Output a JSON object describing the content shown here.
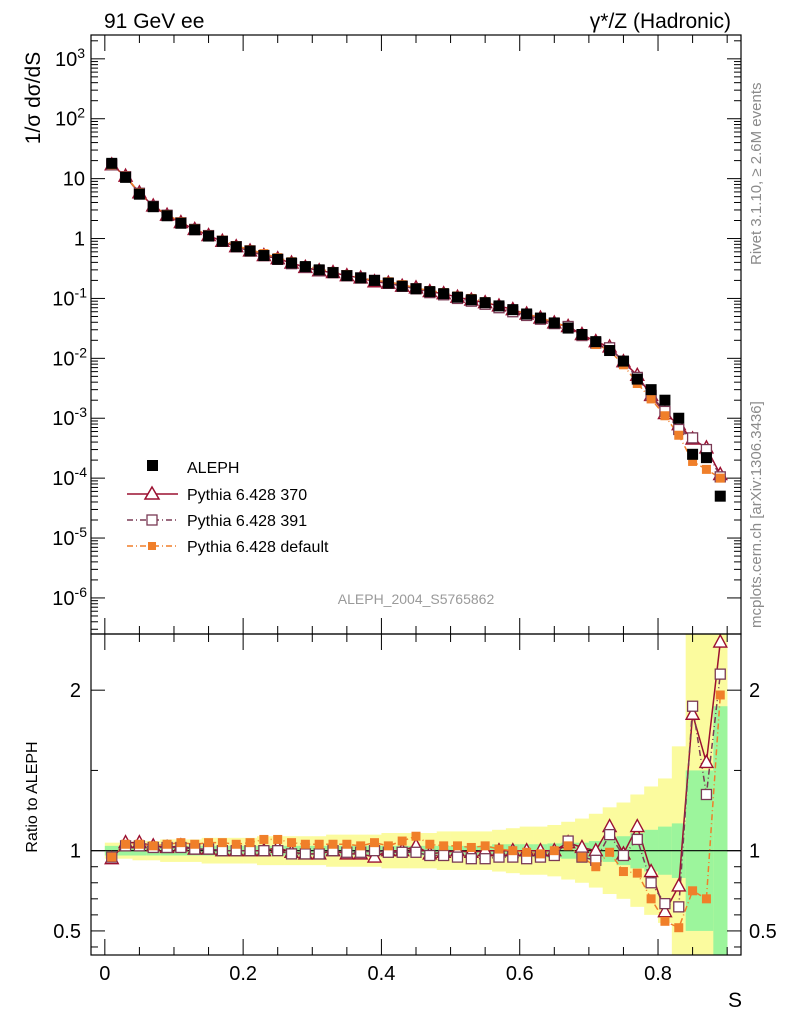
{
  "header": {
    "left": "91 GeV ee",
    "right": "γ*/Z (Hadronic)"
  },
  "side_labels": {
    "rivet": "Rivet 3.1.10, ≥ 2.6M events",
    "site": "mcplots.cern.ch [arXiv:1306.3436]"
  },
  "analysis_label": "ALEPH_2004_S5765862",
  "colors": {
    "data": "#000000",
    "p370": "#9b1030",
    "p391": "#7a3a55",
    "pdef": "#f07f2a",
    "band_inner": "#9cf59c",
    "band_outer": "#fbfb9e"
  },
  "chart_data": [
    {
      "type": "scatter",
      "title": "1/σ dσ/dS",
      "ylabel": "1/σ dσ/dS",
      "xlabel": "S",
      "xlim": [
        -0.02,
        0.92
      ],
      "ylim": [
        2.5e-07,
        2500
      ],
      "yscale": "log",
      "ytick_labels": [
        "10^-6",
        "10^-5",
        "10^-4",
        "10^-3",
        "10^-2",
        "10^-1",
        "1",
        "10",
        "10^2",
        "10^3"
      ],
      "legend": [
        "ALEPH",
        "Pythia 6.428 370",
        "Pythia 6.428 391",
        "Pythia 6.428 default"
      ],
      "x": [
        0.01,
        0.03,
        0.05,
        0.07,
        0.09,
        0.11,
        0.13,
        0.15,
        0.17,
        0.19,
        0.21,
        0.23,
        0.25,
        0.27,
        0.29,
        0.31,
        0.33,
        0.35,
        0.37,
        0.39,
        0.41,
        0.43,
        0.45,
        0.47,
        0.49,
        0.51,
        0.53,
        0.55,
        0.57,
        0.59,
        0.61,
        0.63,
        0.65,
        0.67,
        0.69,
        0.71,
        0.73,
        0.75,
        0.77,
        0.79,
        0.81,
        0.83,
        0.85,
        0.87,
        0.89
      ],
      "series": [
        {
          "name": "ALEPH",
          "values": [
            18,
            10.5,
            5.5,
            3.4,
            2.4,
            1.8,
            1.4,
            1.1,
            0.9,
            0.73,
            0.62,
            0.52,
            0.45,
            0.39,
            0.34,
            0.3,
            0.27,
            0.24,
            0.22,
            0.2,
            0.18,
            0.16,
            0.145,
            0.13,
            0.12,
            0.105,
            0.095,
            0.085,
            0.075,
            0.065,
            0.055,
            0.047,
            0.039,
            0.032,
            0.025,
            0.019,
            0.0135,
            0.009,
            0.0045,
            0.003,
            0.002,
            0.001,
            0.00025,
            0.00022,
            5e-05
          ]
        },
        {
          "name": "Pythia 6.428 370",
          "values": [
            17,
            11,
            5.8,
            3.5,
            2.45,
            1.85,
            1.42,
            1.12,
            0.9,
            0.73,
            0.62,
            0.52,
            0.46,
            0.39,
            0.33,
            0.29,
            0.27,
            0.24,
            0.22,
            0.19,
            0.18,
            0.16,
            0.15,
            0.13,
            0.12,
            0.105,
            0.094,
            0.085,
            0.075,
            0.065,
            0.055,
            0.047,
            0.039,
            0.034,
            0.025,
            0.019,
            0.0155,
            0.0088,
            0.0052,
            0.0024,
            0.0012,
            0.00078,
            0.00045,
            0.00032,
            0.000115
          ]
        },
        {
          "name": "Pythia 6.428 391",
          "values": [
            17,
            10.8,
            5.7,
            3.45,
            2.45,
            1.83,
            1.42,
            1.12,
            0.9,
            0.73,
            0.62,
            0.52,
            0.45,
            0.38,
            0.33,
            0.29,
            0.27,
            0.24,
            0.22,
            0.2,
            0.18,
            0.16,
            0.145,
            0.125,
            0.115,
            0.1,
            0.09,
            0.08,
            0.07,
            0.06,
            0.052,
            0.045,
            0.038,
            0.034,
            0.024,
            0.018,
            0.015,
            0.0087,
            0.0048,
            0.0024,
            0.0013,
            0.00065,
            0.00047,
            0.0003,
            0.000105
          ]
        },
        {
          "name": "Pythia 6.428 default",
          "values": [
            17,
            11,
            5.8,
            3.5,
            2.5,
            1.9,
            1.46,
            1.15,
            0.94,
            0.76,
            0.65,
            0.56,
            0.48,
            0.41,
            0.35,
            0.31,
            0.28,
            0.25,
            0.22,
            0.2,
            0.19,
            0.17,
            0.15,
            0.135,
            0.125,
            0.11,
            0.1,
            0.088,
            0.075,
            0.065,
            0.055,
            0.048,
            0.04,
            0.033,
            0.024,
            0.017,
            0.0135,
            0.0078,
            0.0038,
            0.0021,
            0.0011,
            0.00052,
            0.00019,
            0.00014,
            0.0001
          ]
        }
      ]
    },
    {
      "type": "scatter",
      "title": "Ratio to ALEPH",
      "ylabel": "Ratio to ALEPH",
      "xlabel": "S",
      "xlim": [
        -0.02,
        0.92
      ],
      "ylim": [
        0.35,
        2.35
      ],
      "ytick_labels": [
        "0.5",
        "1",
        "2"
      ],
      "xtick_labels": [
        "0",
        "0.2",
        "0.4",
        "0.6",
        "0.8"
      ],
      "x": [
        0.01,
        0.03,
        0.05,
        0.07,
        0.09,
        0.11,
        0.13,
        0.15,
        0.17,
        0.19,
        0.21,
        0.23,
        0.25,
        0.27,
        0.29,
        0.31,
        0.33,
        0.35,
        0.37,
        0.39,
        0.41,
        0.43,
        0.45,
        0.47,
        0.49,
        0.51,
        0.53,
        0.55,
        0.57,
        0.59,
        0.61,
        0.63,
        0.65,
        0.67,
        0.69,
        0.71,
        0.73,
        0.75,
        0.77,
        0.79,
        0.81,
        0.83,
        0.85,
        0.87,
        0.89
      ],
      "band_inner": [
        0.03,
        0.03,
        0.03,
        0.03,
        0.03,
        0.03,
        0.03,
        0.03,
        0.03,
        0.03,
        0.03,
        0.03,
        0.03,
        0.03,
        0.03,
        0.03,
        0.03,
        0.03,
        0.03,
        0.03,
        0.03,
        0.03,
        0.03,
        0.03,
        0.03,
        0.03,
        0.03,
        0.03,
        0.04,
        0.04,
        0.04,
        0.04,
        0.045,
        0.05,
        0.05,
        0.06,
        0.07,
        0.09,
        0.11,
        0.13,
        0.15,
        0.17,
        0.5,
        0.5,
        0.9
      ],
      "band_outer": [
        0.05,
        0.05,
        0.06,
        0.06,
        0.07,
        0.07,
        0.07,
        0.08,
        0.08,
        0.08,
        0.08,
        0.09,
        0.09,
        0.09,
        0.09,
        0.09,
        0.1,
        0.1,
        0.1,
        0.1,
        0.11,
        0.11,
        0.11,
        0.11,
        0.12,
        0.12,
        0.12,
        0.12,
        0.13,
        0.14,
        0.15,
        0.15,
        0.16,
        0.18,
        0.2,
        0.23,
        0.27,
        0.3,
        0.35,
        0.4,
        0.45,
        0.65,
        1.4,
        1.5,
        1.9
      ],
      "series": [
        {
          "name": "Pythia 6.428 370",
          "values": [
            0.95,
            1.05,
            1.05,
            1.03,
            1.02,
            1.03,
            1.01,
            1.01,
            1.0,
            1.0,
            1.0,
            1.0,
            1.02,
            0.99,
            0.98,
            0.98,
            1.0,
            0.98,
            0.98,
            0.96,
            1.0,
            1.0,
            1.03,
            0.98,
            0.99,
            1.0,
            0.99,
            1.0,
            1.0,
            1.0,
            1.0,
            1.0,
            1.0,
            1.05,
            1.02,
            1.0,
            1.15,
            0.98,
            1.15,
            0.87,
            0.62,
            0.78,
            1.85,
            1.55,
            2.3
          ]
        },
        {
          "name": "Pythia 6.428 391",
          "values": [
            0.96,
            1.03,
            1.03,
            1.02,
            1.02,
            1.02,
            1.01,
            1.01,
            1.0,
            1.0,
            1.0,
            1.0,
            1.0,
            0.98,
            0.98,
            0.98,
            1.0,
            0.99,
            0.99,
            1.0,
            0.99,
            0.99,
            0.99,
            0.97,
            0.97,
            0.96,
            0.95,
            0.95,
            0.96,
            0.96,
            0.95,
            0.96,
            0.97,
            1.06,
            0.96,
            0.94,
            1.1,
            0.97,
            1.07,
            0.8,
            0.67,
            0.65,
            1.9,
            1.35,
            2.1
          ]
        },
        {
          "name": "Pythia 6.428 default",
          "values": [
            0.96,
            1.04,
            1.04,
            1.03,
            1.04,
            1.05,
            1.04,
            1.05,
            1.05,
            1.04,
            1.05,
            1.07,
            1.07,
            1.05,
            1.04,
            1.04,
            1.04,
            1.04,
            1.03,
            1.05,
            1.03,
            1.06,
            1.09,
            1.04,
            1.03,
            1.03,
            1.02,
            1.03,
            1.01,
            1.0,
            0.99,
            0.98,
            1.0,
            1.03,
            0.96,
            0.9,
            0.99,
            0.87,
            0.86,
            0.7,
            0.56,
            0.52,
            0.75,
            0.7,
            1.97
          ]
        }
      ]
    }
  ]
}
